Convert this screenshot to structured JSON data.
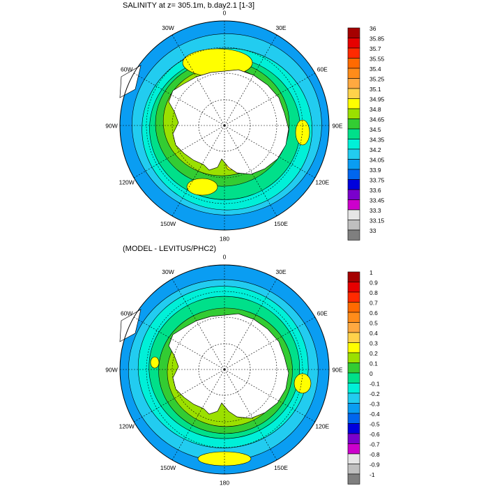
{
  "panels": [
    {
      "title": "SALINITY at z= 305.1m, b.day2.1 [1-3]",
      "lon_labels": [
        "0",
        "30E",
        "60E",
        "90E",
        "120E",
        "150E",
        "180",
        "150W",
        "120W",
        "90W",
        "60W",
        "30W"
      ],
      "colorbar": {
        "labels": [
          "36",
          "35.85",
          "35.7",
          "35.55",
          "35.4",
          "35.25",
          "35.1",
          "34.95",
          "34.8",
          "34.65",
          "34.5",
          "34.35",
          "34.2",
          "34.05",
          "33.9",
          "33.75",
          "33.6",
          "33.45",
          "33.3",
          "33.15",
          "33"
        ],
        "colors": [
          "#a50000",
          "#e60000",
          "#ff2a00",
          "#ff6a00",
          "#ff8c1a",
          "#ffa940",
          "#ffd24a",
          "#ffff00",
          "#9be000",
          "#33cc33",
          "#00e08a",
          "#00f0d8",
          "#22ccf0",
          "#0a9df2",
          "#0066ee",
          "#0000dd",
          "#7a00cc",
          "#cc00cc",
          "#e6e6e6",
          "#bfbfbf",
          "#7f7f7f"
        ]
      }
    },
    {
      "title": "(MODEL - LEVITUS/PHC2)",
      "lon_labels": [
        "0",
        "30E",
        "60E",
        "90E",
        "120E",
        "150E",
        "180",
        "150W",
        "120W",
        "90W",
        "60W",
        "30W"
      ],
      "colorbar": {
        "labels": [
          "1",
          "0.9",
          "0.8",
          "0.7",
          "0.6",
          "0.5",
          "0.4",
          "0.3",
          "0.2",
          "0.1",
          "0",
          "-0.1",
          "-0.2",
          "-0.3",
          "-0.4",
          "-0.5",
          "-0.6",
          "-0.7",
          "-0.8",
          "-0.9",
          "-1"
        ],
        "colors": [
          "#a50000",
          "#e60000",
          "#ff2a00",
          "#ff6a00",
          "#ff8c1a",
          "#ffa940",
          "#ffd24a",
          "#ffff00",
          "#9be000",
          "#33cc33",
          "#00e08a",
          "#00f0d8",
          "#22ccf0",
          "#0a9df2",
          "#0066ee",
          "#0000dd",
          "#7a00cc",
          "#cc00cc",
          "#e6e6e6",
          "#bfbfbf",
          "#7f7f7f"
        ]
      }
    }
  ]
}
